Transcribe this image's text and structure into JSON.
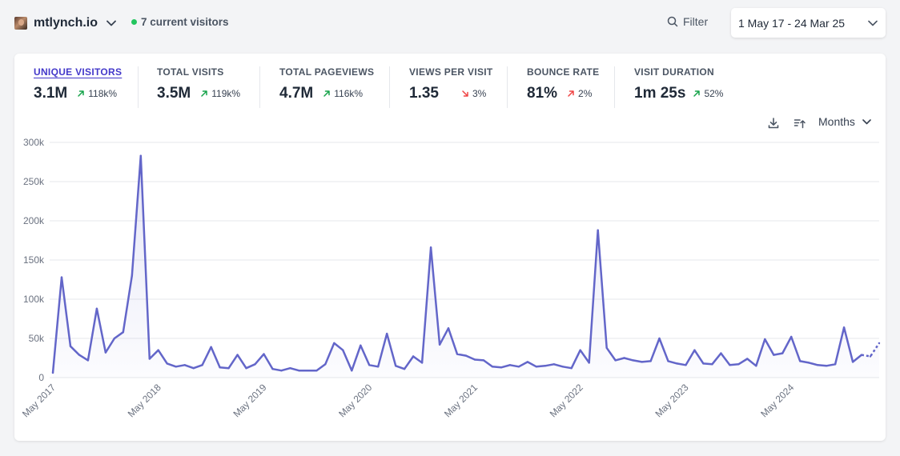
{
  "header": {
    "site_name": "mtlynch.io",
    "current_visitors": "7 current visitors",
    "filter_label": "Filter",
    "date_range": "1 May 17 - 24 Mar 25"
  },
  "metrics": [
    {
      "label": "UNIQUE VISITORS",
      "value": "3.1M",
      "change": "118k%",
      "direction": "up",
      "active": true
    },
    {
      "label": "TOTAL VISITS",
      "value": "3.5M",
      "change": "119k%",
      "direction": "up"
    },
    {
      "label": "TOTAL PAGEVIEWS",
      "value": "4.7M",
      "change": "116k%",
      "direction": "up"
    },
    {
      "label": "VIEWS PER VISIT",
      "value": "1.35",
      "change": "3%",
      "direction": "down"
    },
    {
      "label": "BOUNCE RATE",
      "value": "81%",
      "change": "2%",
      "direction": "up-bad"
    },
    {
      "label": "VISIT DURATION",
      "value": "1m 25s",
      "change": "52%",
      "direction": "up"
    }
  ],
  "toolbar": {
    "interval_label": "Months"
  },
  "colors": {
    "line": "#6366c9",
    "area": "#eef0fb",
    "accent": "#4338ca",
    "up": "#16a34a",
    "down": "#ef4444"
  },
  "chart_data": {
    "type": "line",
    "y_ticks": [
      "0",
      "50k",
      "100k",
      "150k",
      "200k",
      "250k",
      "300k"
    ],
    "ylim": [
      0,
      300000
    ],
    "x_ticks": [
      "May 2017",
      "May 2018",
      "May 2019",
      "May 2020",
      "May 2021",
      "May 2022",
      "May 2023",
      "May 2024"
    ],
    "x_tick_month_index": [
      0,
      12,
      24,
      36,
      48,
      60,
      72,
      84
    ],
    "series": [
      {
        "values": [
          6000,
          128000,
          40000,
          29000,
          22000,
          88000,
          32000,
          50000,
          58000,
          130000,
          283000,
          24000,
          35000,
          18000,
          14000,
          16000,
          12000,
          16000,
          39000,
          13000,
          12000,
          29000,
          12000,
          17000,
          30000,
          11000,
          9000,
          12000,
          9000,
          9000,
          9000,
          17000,
          44000,
          35000,
          9000,
          41000,
          16000,
          14000,
          56000,
          15000,
          11000,
          27000,
          19000,
          166000,
          42000,
          63000,
          30000,
          28000,
          23000,
          22000,
          14000,
          13000,
          16000,
          14000,
          20000,
          14000,
          15000,
          17000,
          14000,
          12000,
          35000,
          19000,
          188000,
          38000,
          22000,
          25000,
          22000,
          20000,
          21000,
          50000,
          21000,
          18000,
          16000,
          35000,
          18000,
          17000,
          31000,
          16000,
          17000,
          24000,
          15000,
          49000,
          29000,
          31000,
          52000,
          21000,
          19000,
          16000,
          15000,
          17000,
          64000,
          20000,
          29000,
          27000,
          44000
        ],
        "partial_last_points": 2
      }
    ]
  }
}
